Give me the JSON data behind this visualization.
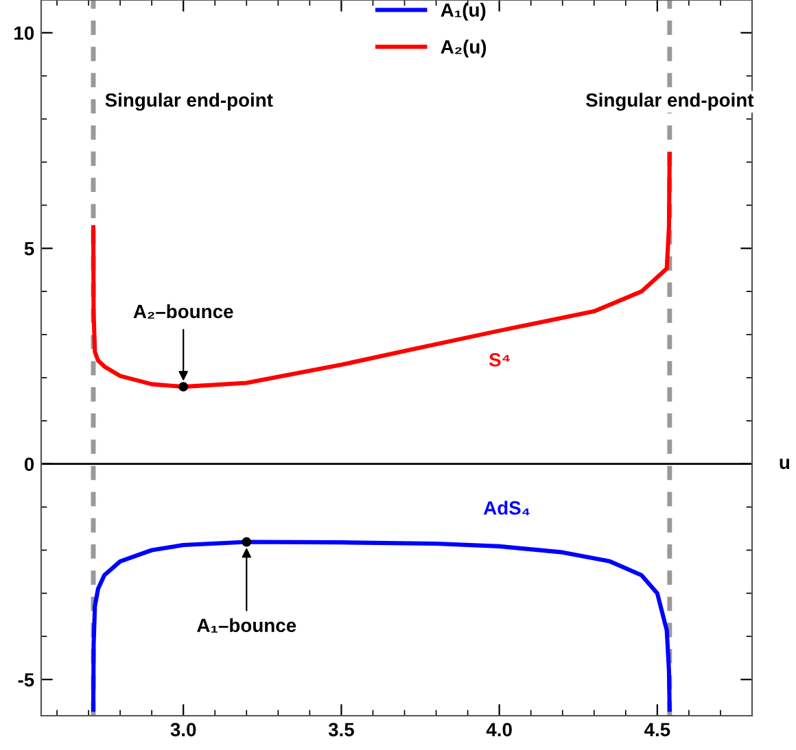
{
  "chart_data": {
    "type": "line",
    "xlabel": "u",
    "xlim": [
      2.55,
      4.8
    ],
    "ylim": [
      -5.84,
      10.76
    ],
    "xticks": [
      {
        "value": 3.0,
        "label": "3.0"
      },
      {
        "value": 3.5,
        "label": "3.5"
      },
      {
        "value": 4.0,
        "label": "4.0"
      },
      {
        "value": 4.5,
        "label": "4.5"
      }
    ],
    "yticks": [
      -5,
      0,
      5,
      10
    ],
    "series": [
      {
        "name": "A₁(u)",
        "color": "#0000ff",
        "x": [
          2.715,
          2.716,
          2.72,
          2.73,
          2.75,
          2.8,
          2.9,
          3.0,
          3.2,
          3.5,
          3.8,
          4.0,
          4.2,
          4.35,
          4.45,
          4.5,
          4.53,
          4.537,
          4.539
        ],
        "values": [
          -5.7,
          -4.2,
          -3.3,
          -2.9,
          -2.58,
          -2.26,
          -2.0,
          -1.88,
          -1.81,
          -1.82,
          -1.85,
          -1.91,
          -2.05,
          -2.26,
          -2.58,
          -3.0,
          -3.86,
          -4.8,
          -5.7
        ]
      },
      {
        "name": "A₂(u)",
        "color": "#ff0000",
        "x": [
          2.715,
          2.716,
          2.72,
          2.73,
          2.75,
          2.8,
          2.9,
          3.0,
          3.2,
          3.5,
          3.7,
          4.0,
          4.3,
          4.45,
          4.53,
          4.537,
          4.539
        ],
        "values": [
          5.49,
          3.5,
          2.6,
          2.4,
          2.26,
          2.04,
          1.85,
          1.79,
          1.88,
          2.3,
          2.62,
          3.09,
          3.54,
          4.0,
          4.53,
          5.5,
          7.18
        ]
      }
    ],
    "ref_lines": [
      {
        "axis": "y",
        "value": 0,
        "color": "#000000",
        "line_style": "solid"
      },
      {
        "axis": "x",
        "value": 2.715,
        "label": "Singular end-point",
        "color": "#999999",
        "line_style": "dashed"
      },
      {
        "axis": "x",
        "value": 4.539,
        "label": "Singular end-point",
        "color": "#999999",
        "line_style": "dashed"
      }
    ],
    "annotations": [
      {
        "text": "A₂–bounce",
        "x": 3.0,
        "y": 1.79
      },
      {
        "text": "A₁–bounce",
        "x": 3.2,
        "y": -1.81
      },
      "S⁴",
      "AdS₄"
    ],
    "legend": "top",
    "grid": false
  }
}
